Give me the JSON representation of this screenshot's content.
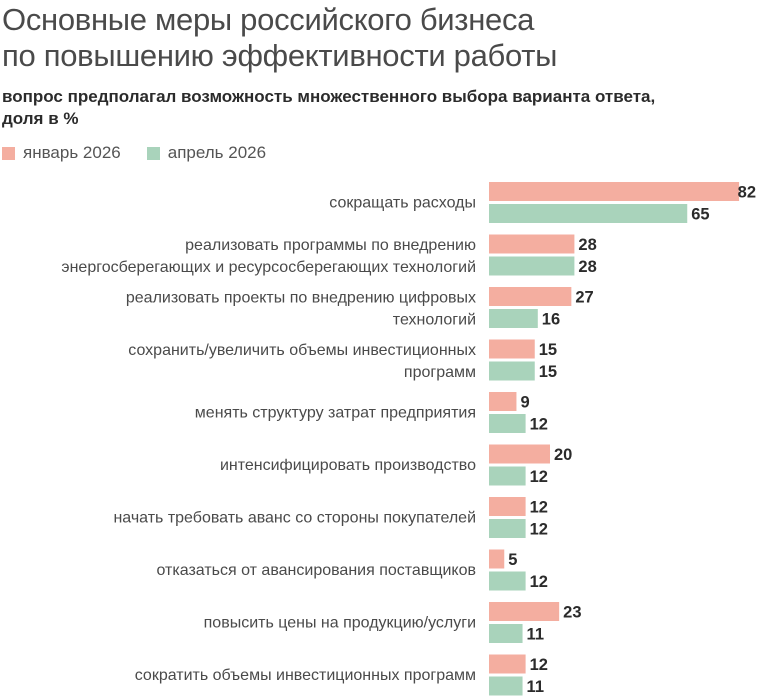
{
  "title_lines": [
    "Основные меры российского бизнеса",
    "по повышению эффективности работы"
  ],
  "subtitle_lines": [
    "вопрос предполагал возможность множественного выбора варианта ответа,",
    "доля в %"
  ],
  "colors": {
    "series1": "#f4aea0",
    "series2": "#a9d3bb"
  },
  "chart_data": {
    "type": "bar",
    "orientation": "horizontal",
    "title": "Основные меры российского бизнеса по повышению эффективности работы",
    "subtitle": "вопрос предполагал возможность множественного выбора варианта ответа, доля в %",
    "categories": [
      [
        "сокращать расходы"
      ],
      [
        "реализовать программы по внедрению",
        "энергосберегающих и ресурсосберегающих технологий"
      ],
      [
        "реализовать проекты по внедрению цифровых",
        "технологий"
      ],
      [
        "сохранить/увеличить объемы инвестиционных",
        "программ"
      ],
      [
        "менять структуру затрат предприятия"
      ],
      [
        "интенсифицировать производство"
      ],
      [
        "начать требовать аванс со стороны покупателей"
      ],
      [
        "отказаться от авансирования поставщиков"
      ],
      [
        "повысить цены на продукцию/услуги"
      ],
      [
        "сократить объемы инвестиционных программ"
      ]
    ],
    "series": [
      {
        "name": "январь 2026",
        "values": [
          82,
          28,
          27,
          15,
          9,
          20,
          12,
          5,
          23,
          12
        ]
      },
      {
        "name": "апрель 2026",
        "values": [
          65,
          28,
          16,
          15,
          12,
          12,
          12,
          12,
          11,
          11
        ]
      }
    ],
    "legend_position": "top-left",
    "grid": false
  }
}
